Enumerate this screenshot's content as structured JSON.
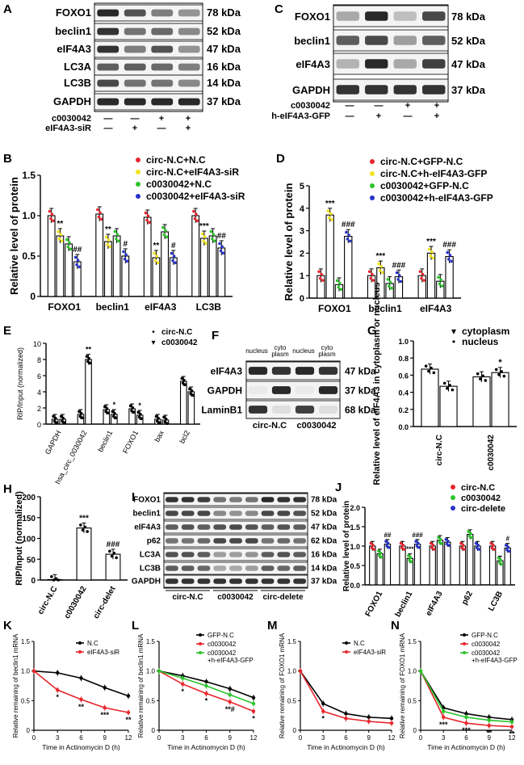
{
  "colors": {
    "red": "#e8262d",
    "yellow": "#f2e21d",
    "green": "#2bc42b",
    "blue": "#2633c9",
    "black": "#000000",
    "band": "#1e1e1e",
    "blot": "#f4f4f4"
  },
  "panelA": {
    "letter": "A",
    "rows": [
      {
        "label": "FOXO1",
        "kda": "78 kDa"
      },
      {
        "label": "beclin1",
        "kda": "52 kDa"
      },
      {
        "label": "eIF4A3",
        "kda": "47 kDa"
      },
      {
        "label": "LC3A",
        "kda": "16 kDa"
      },
      {
        "label": "LC3B",
        "kda": "14 kDa"
      },
      {
        "label": "GAPDH",
        "kda": "37 kDa"
      }
    ],
    "conditions": [
      {
        "label": "c0030042",
        "marks": [
          "—",
          "—",
          "+",
          "+"
        ]
      },
      {
        "label": "eIF4A3-siR",
        "marks": [
          "—",
          "+",
          "—",
          "+"
        ]
      }
    ]
  },
  "panelC": {
    "letter": "C",
    "rows": [
      {
        "label": "FOXO1",
        "kda": "78 kDa"
      },
      {
        "label": "beclin1",
        "kda": "52 kDa"
      },
      {
        "label": "eIF4A3",
        "kda": "47 kDa"
      },
      {
        "label": "GAPDH",
        "kda": "37 kDa"
      }
    ],
    "conditions": [
      {
        "label": "c0030042",
        "marks": [
          "—",
          "—",
          "+",
          "+"
        ]
      },
      {
        "label": "h-eIF4A3-GFP",
        "marks": [
          "—",
          "+",
          "—",
          "+"
        ]
      }
    ]
  },
  "panelF": {
    "letter": "F",
    "headers": [
      "nucleus",
      "cyto plasm",
      "nucleus",
      "cyto plasm"
    ],
    "rows": [
      {
        "label": "eIF4A3",
        "kda": "47 kDa"
      },
      {
        "label": "GAPDH",
        "kda": "37 kDa"
      },
      {
        "label": "LaminB1",
        "kda": "68 kDa"
      }
    ],
    "groups": [
      "circ-N.C",
      "c0030042"
    ]
  },
  "panelI": {
    "letter": "I",
    "rows": [
      {
        "label": "FOXO1",
        "kda": "78 kDa"
      },
      {
        "label": "beclin1",
        "kda": "52 kDa"
      },
      {
        "label": "eIF4A3",
        "kda": "47 kDa"
      },
      {
        "label": "p62",
        "kda": "62 kDa"
      },
      {
        "label": "LC3A",
        "kda": "16 kDa"
      },
      {
        "label": "LC3B",
        "kda": "14 kDa"
      },
      {
        "label": "GAPDH",
        "kda": "37 kDa"
      }
    ],
    "groups": [
      "circ-N.C",
      "c0030042",
      "circ-delete"
    ]
  },
  "chart_data": [
    {
      "id": "B",
      "type": "bar",
      "ylabel": "Relative level of protein",
      "ylim": [
        0,
        1.5
      ],
      "ticks": [
        0,
        0.5,
        1.0,
        1.5
      ],
      "categories": [
        "FOXO1",
        "beclin1",
        "eIF4A3",
        "LC3B"
      ],
      "series": [
        {
          "name": "circ-N.C+N.C",
          "color": "#e8262d",
          "values": [
            1.0,
            1.02,
            0.98,
            1.0
          ]
        },
        {
          "name": "circ-N.C+eIF4A3-siR",
          "color": "#f2e21d",
          "values": [
            0.75,
            0.68,
            0.48,
            0.72
          ]
        },
        {
          "name": "c0030042+N.C",
          "color": "#2bc42b",
          "values": [
            0.65,
            0.75,
            0.8,
            0.75
          ]
        },
        {
          "name": "c0030042+eIF4A3-siR",
          "color": "#2633c9",
          "values": [
            0.43,
            0.5,
            0.48,
            0.6
          ]
        }
      ],
      "annotations": [
        {
          "cat": 0,
          "s": 1,
          "text": "**"
        },
        {
          "cat": 0,
          "s": 3,
          "text": "##"
        },
        {
          "cat": 1,
          "s": 1,
          "text": "**"
        },
        {
          "cat": 1,
          "s": 3,
          "text": "#"
        },
        {
          "cat": 2,
          "s": 1,
          "text": "**"
        },
        {
          "cat": 2,
          "s": 3,
          "text": "#"
        },
        {
          "cat": 3,
          "s": 1,
          "text": "***"
        },
        {
          "cat": 3,
          "s": 3,
          "text": "##"
        }
      ]
    },
    {
      "id": "D",
      "type": "bar",
      "ylabel": "Relative level of protein",
      "ylim": [
        0,
        5
      ],
      "ticks": [
        0,
        1,
        2,
        3,
        4,
        5
      ],
      "categories": [
        "FOXO1",
        "beclin1",
        "eIF4A3"
      ],
      "series": [
        {
          "name": "circ-N.C+GFP-N.C",
          "color": "#e8262d",
          "values": [
            1.0,
            1.0,
            1.0
          ]
        },
        {
          "name": "circ-N.C+h-eIF4A3-GFP",
          "color": "#f2e21d",
          "values": [
            3.7,
            1.35,
            2.0
          ]
        },
        {
          "name": "c0030042+GFP-N.C",
          "color": "#2bc42b",
          "values": [
            0.6,
            0.65,
            0.75
          ]
        },
        {
          "name": "c0030042+h-eIF4A3-GFP",
          "color": "#2633c9",
          "values": [
            2.75,
            0.95,
            1.85
          ]
        }
      ],
      "annotations": [
        {
          "cat": 0,
          "s": 1,
          "text": "***"
        },
        {
          "cat": 0,
          "s": 3,
          "text": "###"
        },
        {
          "cat": 1,
          "s": 1,
          "text": "***"
        },
        {
          "cat": 1,
          "s": 3,
          "text": "###"
        },
        {
          "cat": 2,
          "s": 1,
          "text": "***"
        },
        {
          "cat": 2,
          "s": 3,
          "text": "###"
        }
      ]
    },
    {
      "id": "E",
      "type": "bar",
      "ylabel": "RIP/Input (normalized)",
      "ylim": [
        0,
        10
      ],
      "ticks": [
        0,
        2,
        4,
        6,
        8,
        10
      ],
      "categories": [
        "GAPDH",
        "hsa_circ_0030042",
        "beclin1",
        "FOXO1",
        "bax",
        "bcl2"
      ],
      "series": [
        {
          "name": "circ-N.C",
          "marker": "•",
          "values": [
            0.6,
            1.2,
            1.8,
            1.9,
            0.6,
            5.3
          ]
        },
        {
          "name": "c0030042",
          "marker": "▾",
          "values": [
            0.6,
            8.0,
            1.2,
            1.1,
            0.5,
            4.0
          ]
        }
      ],
      "annotations": [
        {
          "cat": 1,
          "s": 1,
          "text": "**"
        },
        {
          "cat": 2,
          "s": 1,
          "text": "*"
        },
        {
          "cat": 3,
          "s": 1,
          "text": "*"
        }
      ]
    },
    {
      "id": "G",
      "type": "bar",
      "ylabel": "Relative level of eIF4A3 in cytoplasm or nucleus",
      "ylim": [
        0,
        1.0
      ],
      "ticks": [
        0,
        0.2,
        0.4,
        0.6,
        0.8,
        1.0
      ],
      "categories": [
        "circ-N.C",
        "c0030042"
      ],
      "series": [
        {
          "name": "cytoplasm",
          "marker": "▾",
          "values": [
            0.67,
            0.58
          ]
        },
        {
          "name": "nucleus",
          "marker": "•",
          "values": [
            0.47,
            0.63
          ]
        }
      ],
      "annotations": [
        {
          "cat": 1,
          "s": 1,
          "text": "*"
        }
      ]
    },
    {
      "id": "H",
      "type": "bar",
      "ylabel": "RIP/Input (normalized)",
      "ylim": [
        0,
        200
      ],
      "ticks": [
        0,
        50,
        100,
        150,
        200
      ],
      "categories": [
        "circ-N.C",
        "c0030042",
        "circ-delet"
      ],
      "series": [
        {
          "name": "RIP/Input",
          "values": [
            1,
            125,
            62
          ]
        }
      ],
      "annotations": [
        {
          "cat": 1,
          "s": 0,
          "text": "***"
        },
        {
          "cat": 2,
          "s": 0,
          "text": "###"
        }
      ]
    },
    {
      "id": "J",
      "type": "bar",
      "ylabel": "Relative level of protein",
      "ylim": [
        0,
        2.0
      ],
      "ticks": [
        0,
        0.5,
        1.0,
        1.5,
        2.0
      ],
      "categories": [
        "FOXO1",
        "beclin1",
        "eIF4A3",
        "p62",
        "LC3B"
      ],
      "series": [
        {
          "name": "circ-N.C",
          "color": "#e8262d",
          "values": [
            1.0,
            1.0,
            1.0,
            1.0,
            1.0
          ]
        },
        {
          "name": "c0030042",
          "color": "#2bc42b",
          "values": [
            0.8,
            0.68,
            1.15,
            1.3,
            0.62
          ]
        },
        {
          "name": "circ-delete",
          "color": "#2633c9",
          "values": [
            1.05,
            1.05,
            1.1,
            1.0,
            0.95
          ]
        }
      ],
      "annotations": [
        {
          "cat": 0,
          "s": 2,
          "text": "##"
        },
        {
          "cat": 1,
          "s": 1,
          "text": "***"
        },
        {
          "cat": 1,
          "s": 2,
          "text": "###"
        },
        {
          "cat": 4,
          "s": 2,
          "text": "#"
        }
      ]
    },
    {
      "id": "K",
      "type": "line",
      "xlabel": "Time in Actinomycin D (h)",
      "ylabel": "Relative remaining of beclin1 mRNA",
      "xlim": [
        0,
        12
      ],
      "ylim": [
        0,
        1.5
      ],
      "xticks": [
        0,
        3,
        6,
        9,
        12
      ],
      "yticks": [
        0,
        0.5,
        1.0,
        1.5
      ],
      "x": [
        0,
        3,
        6,
        9,
        12
      ],
      "series": [
        {
          "name": "N.C",
          "color": "#000000",
          "values": [
            1.0,
            0.97,
            0.88,
            0.72,
            0.58
          ]
        },
        {
          "name": "eIF4A3-siR",
          "color": "#e8262d",
          "values": [
            1.0,
            0.68,
            0.52,
            0.38,
            0.3
          ]
        }
      ],
      "annotations": [
        "*",
        "**",
        "***",
        "**"
      ]
    },
    {
      "id": "L",
      "type": "line",
      "xlabel": "Time in Actinomycin D (h)",
      "ylabel": "Relative remaining of beclin1 mRNA",
      "xlim": [
        0,
        12
      ],
      "ylim": [
        0,
        1.5
      ],
      "xticks": [
        0,
        3,
        6,
        9,
        12
      ],
      "yticks": [
        0,
        0.5,
        1.0,
        1.5
      ],
      "x": [
        0,
        3,
        6,
        9,
        12
      ],
      "series": [
        {
          "name": "GFP-N.C",
          "color": "#000000",
          "values": [
            1.0,
            0.92,
            0.82,
            0.7,
            0.55
          ]
        },
        {
          "name": "c0030042",
          "color": "#e8262d",
          "values": [
            1.0,
            0.78,
            0.62,
            0.48,
            0.32
          ]
        },
        {
          "name": "c0030042 +h-eIF4A3-GFP",
          "color": "#2bc42b",
          "values": [
            1.0,
            0.88,
            0.75,
            0.6,
            0.45
          ]
        }
      ],
      "annotations": [
        "*",
        "*",
        "**#",
        "*"
      ]
    },
    {
      "id": "M",
      "type": "line",
      "xlabel": "Time in Actinomycin D (h)",
      "ylabel": "Relative remaining of FOXO1 mRNA",
      "xlim": [
        0,
        12
      ],
      "ylim": [
        0,
        1.5
      ],
      "xticks": [
        0,
        3,
        6,
        9,
        12
      ],
      "yticks": [
        0,
        0.5,
        1.0,
        1.5
      ],
      "x": [
        0,
        3,
        6,
        9,
        12
      ],
      "series": [
        {
          "name": "N.C",
          "color": "#000000",
          "values": [
            1.0,
            0.45,
            0.28,
            0.22,
            0.2
          ]
        },
        {
          "name": "eIF4A3-siR",
          "color": "#e8262d",
          "values": [
            1.0,
            0.32,
            0.2,
            0.15,
            0.12
          ]
        }
      ],
      "annotations": [
        "*"
      ]
    },
    {
      "id": "N",
      "type": "line",
      "xlabel": "Time in Actinomycin D (h)",
      "ylabel": "Relative remaining of FOXO1 mRNA",
      "xlim": [
        0,
        12
      ],
      "ylim": [
        0,
        1.5
      ],
      "xticks": [
        0,
        3,
        6,
        9,
        12
      ],
      "yticks": [
        0,
        0.5,
        1.0,
        1.5
      ],
      "x": [
        0,
        3,
        6,
        9,
        12
      ],
      "series": [
        {
          "name": "GFP-N.C",
          "color": "#000000",
          "values": [
            1.0,
            0.38,
            0.28,
            0.22,
            0.18
          ]
        },
        {
          "name": "c0030042",
          "color": "#e8262d",
          "values": [
            1.0,
            0.22,
            0.12,
            0.08,
            0.06
          ]
        },
        {
          "name": "c0030042 +h-eIF4A3-GFP",
          "color": "#2bc42b",
          "values": [
            1.0,
            0.32,
            0.22,
            0.17,
            0.14
          ]
        }
      ],
      "annotations": [
        "***",
        "***",
        "**",
        "**"
      ]
    }
  ]
}
